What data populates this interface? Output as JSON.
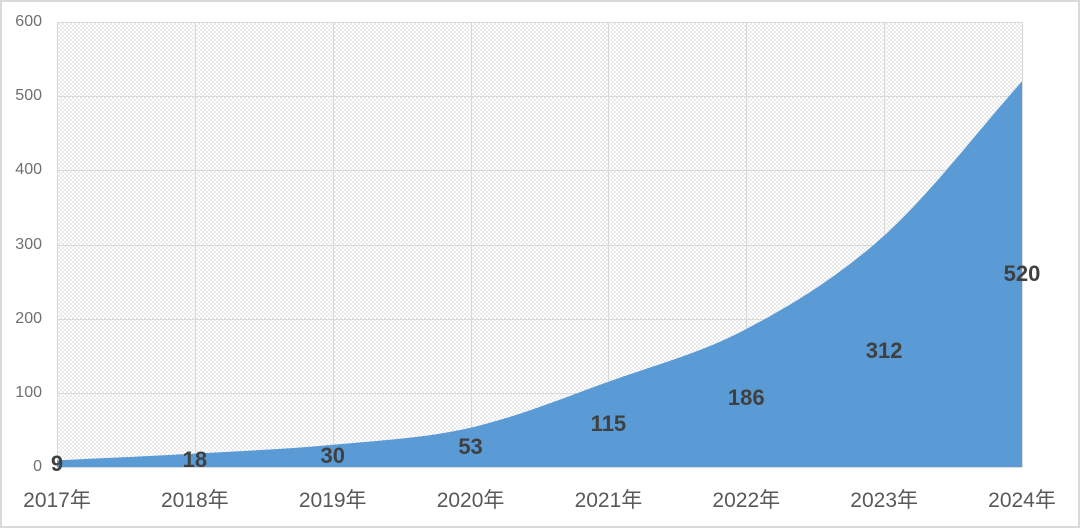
{
  "chart_data": {
    "type": "area",
    "title": "",
    "xlabel": "",
    "ylabel": "",
    "legend": "none",
    "grid": true,
    "smooth": true,
    "plot_area_pattern": "light-dot-hatch",
    "categories": [
      "2017年",
      "2018年",
      "2019年",
      "2020年",
      "2021年",
      "2022年",
      "2023年",
      "2024年"
    ],
    "values": [
      9,
      18,
      30,
      53,
      115,
      186,
      312,
      520
    ],
    "data_labels": [
      "9",
      "18",
      "30",
      "53",
      "115",
      "186",
      "312",
      "520"
    ],
    "yticks": [
      0,
      100,
      200,
      300,
      400,
      500,
      600
    ],
    "ylim": [
      0,
      600
    ],
    "colors": {
      "area_fill": "#5b9bd5",
      "gridline": "#d9d9d9",
      "axis_line": "#d9d9d9",
      "y_tick_label": "#6f6f6f",
      "x_tick_label": "#595959",
      "data_label": "#404040",
      "plot_pattern_dot": "#e2e2e2",
      "background": "#ffffff",
      "border": "#d9d9d9"
    }
  }
}
